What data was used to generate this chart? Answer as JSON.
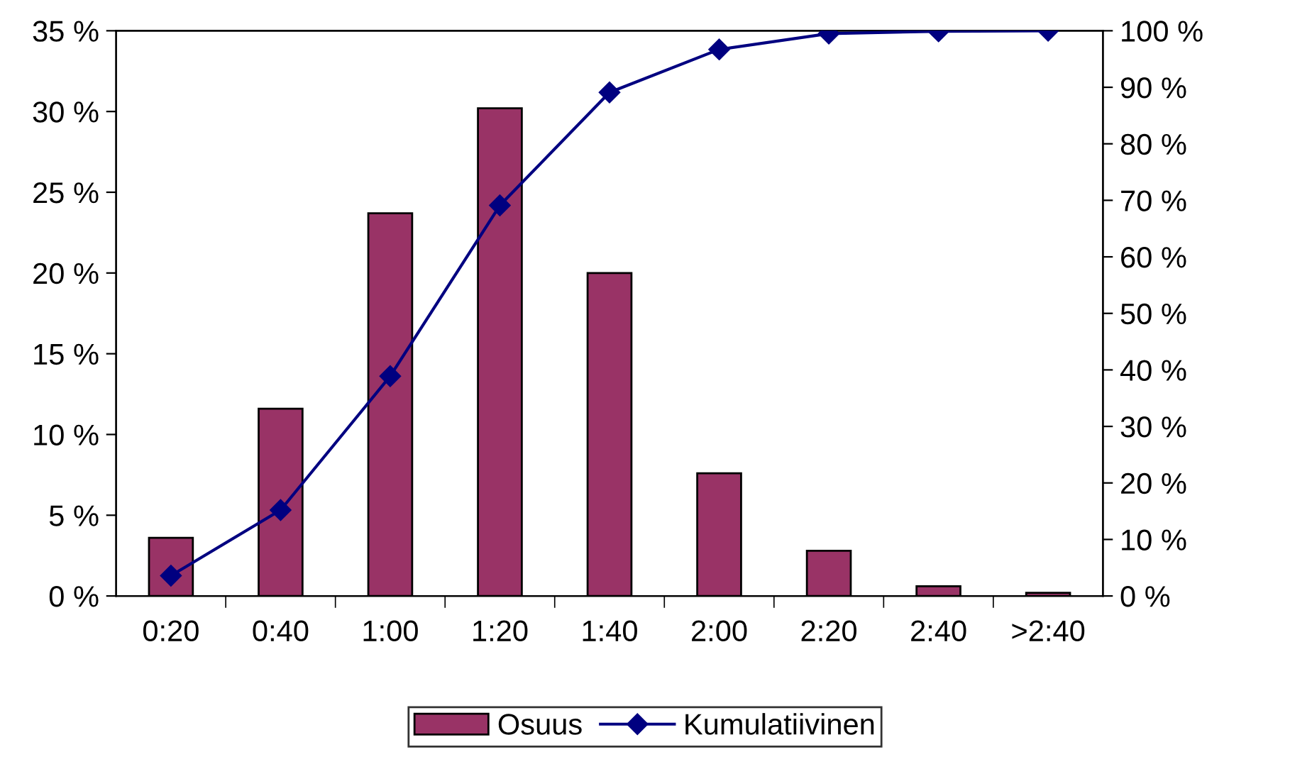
{
  "chart_data": {
    "type": "bar",
    "categories": [
      "0:20",
      "0:40",
      "1:00",
      "1:20",
      "1:40",
      "2:00",
      "2:20",
      "2:40",
      ">2:40"
    ],
    "series": [
      {
        "name": "Osuus",
        "type": "bar",
        "color": "#993366",
        "values": [
          3.6,
          11.6,
          23.7,
          30.2,
          20.0,
          7.6,
          2.8,
          0.6,
          0.2
        ]
      },
      {
        "name": "Kumulatiivinen",
        "type": "line",
        "axis": "y2",
        "color": "#000080",
        "values": [
          3.6,
          15.2,
          38.9,
          69.1,
          89.1,
          96.7,
          99.5,
          99.9,
          100
        ]
      }
    ],
    "ylim": [
      0,
      35
    ],
    "yticks": [
      {
        "value": 0,
        "label": "0 %"
      },
      {
        "value": 5,
        "label": "5 %"
      },
      {
        "value": 10,
        "label": "10 %"
      },
      {
        "value": 15,
        "label": "15 %"
      },
      {
        "value": 20,
        "label": "20 %"
      },
      {
        "value": 25,
        "label": "25 %"
      },
      {
        "value": 30,
        "label": "30 %"
      },
      {
        "value": 35,
        "label": "35 %"
      }
    ],
    "y2lim": [
      0,
      100
    ],
    "y2ticks": [
      {
        "value": 0,
        "label": "0 %"
      },
      {
        "value": 10,
        "label": "10 %"
      },
      {
        "value": 20,
        "label": "20 %"
      },
      {
        "value": 30,
        "label": "30 %"
      },
      {
        "value": 40,
        "label": "40 %"
      },
      {
        "value": 50,
        "label": "50 %"
      },
      {
        "value": 60,
        "label": "60 %"
      },
      {
        "value": 70,
        "label": "70 %"
      },
      {
        "value": 80,
        "label": "80 %"
      },
      {
        "value": 90,
        "label": "90 %"
      },
      {
        "value": 100,
        "label": "100 %"
      }
    ],
    "marker": "diamond",
    "line_style": "solid",
    "grid": false,
    "legend": "bottom"
  }
}
